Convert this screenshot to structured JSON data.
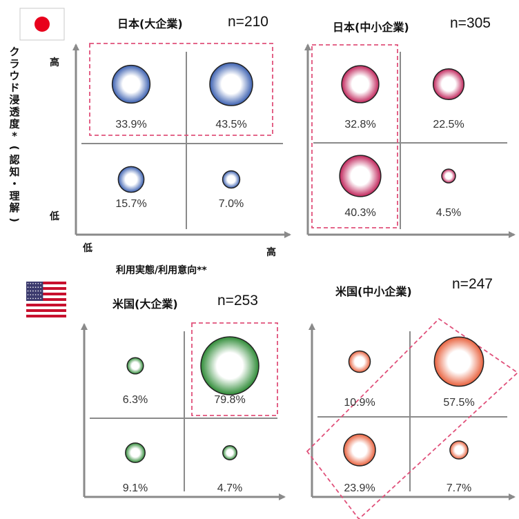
{
  "chart_data": [
    {
      "type": "scatter",
      "title": "日本(大企業)",
      "n": "n=210",
      "country": "Japan",
      "bubble_color": "#3a5fb0",
      "highlight": "top-row",
      "ylabel_high": "高",
      "ylabel_low": "低",
      "xlabel_low": "低",
      "xlabel_high": "高",
      "cells": [
        {
          "quadrant": "high-low",
          "value": 33.9,
          "label": "33.9%"
        },
        {
          "quadrant": "high-high",
          "value": 43.5,
          "label": "43.5%"
        },
        {
          "quadrant": "low-low",
          "value": 15.7,
          "label": "15.7%"
        },
        {
          "quadrant": "low-high",
          "value": 7.0,
          "label": "7.0%"
        }
      ]
    },
    {
      "type": "scatter",
      "title": "日本(中小企業)",
      "n": "n=305",
      "country": "Japan",
      "bubble_color": "#c0245a",
      "highlight": "left-column",
      "cells": [
        {
          "quadrant": "high-low",
          "value": 32.8,
          "label": "32.8%"
        },
        {
          "quadrant": "high-high",
          "value": 22.5,
          "label": "22.5%"
        },
        {
          "quadrant": "low-low",
          "value": 40.3,
          "label": "40.3%"
        },
        {
          "quadrant": "low-high",
          "value": 4.5,
          "label": "4.5%"
        }
      ]
    },
    {
      "type": "scatter",
      "title": "米国(大企業)",
      "n": "n=253",
      "country": "USA",
      "bubble_color": "#2e8b36",
      "highlight": "top-right",
      "cells": [
        {
          "quadrant": "high-low",
          "value": 6.3,
          "label": "6.3%"
        },
        {
          "quadrant": "high-high",
          "value": 79.8,
          "label": "79.8%"
        },
        {
          "quadrant": "low-low",
          "value": 9.1,
          "label": "9.1%"
        },
        {
          "quadrant": "low-high",
          "value": 4.7,
          "label": "4.7%"
        }
      ]
    },
    {
      "type": "scatter",
      "title": "米国(中小企業)",
      "n": "n=247",
      "country": "USA",
      "bubble_color": "#e8603c",
      "highlight": "diagonal",
      "cells": [
        {
          "quadrant": "high-low",
          "value": 10.9,
          "label": "10.9%"
        },
        {
          "quadrant": "high-high",
          "value": 57.5,
          "label": "57.5%"
        },
        {
          "quadrant": "low-low",
          "value": 23.9,
          "label": "23.9%"
        },
        {
          "quadrant": "low-high",
          "value": 7.7,
          "label": "7.7%"
        }
      ]
    }
  ],
  "axes": {
    "ylabel": "クラウド浸透度*(認知・理解)",
    "xlabel": "利用実態/利用意向**",
    "y_high": "高",
    "y_low": "低",
    "x_low": "低",
    "x_high": "高"
  },
  "colors": {
    "axis": "#8a8a8a",
    "highlight_border": "#e0507a",
    "japan_flag_red": "#e8001c",
    "us_flag_red": "#c8102e",
    "us_flag_blue": "#3c3b6e"
  }
}
